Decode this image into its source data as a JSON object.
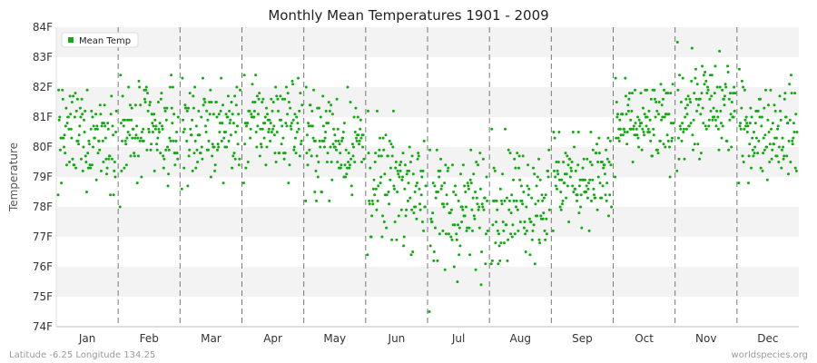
{
  "chart_data": {
    "type": "scatter",
    "title": "Monthly Mean Temperatures 1901 - 2009",
    "ylabel": "Temperature",
    "xlabel": "",
    "categories": [
      "Jan",
      "Feb",
      "Mar",
      "Apr",
      "May",
      "Jun",
      "Jul",
      "Aug",
      "Sep",
      "Oct",
      "Nov",
      "Dec"
    ],
    "y_ticks": [
      "74F",
      "75F",
      "76F",
      "77F",
      "78F",
      "79F",
      "80F",
      "81F",
      "82F",
      "83F",
      "84F"
    ],
    "ylim": [
      74,
      84
    ],
    "grid": "horizontal bands, dashed vertical month separators",
    "legend": {
      "position": "top-left",
      "label": "Mean Temp"
    },
    "series": [
      {
        "name": "Mean Temp",
        "color": "#11aa11",
        "monthly_summary": [
          {
            "month": "Jan",
            "min": 78.4,
            "max": 81.9,
            "center": 80.4,
            "spread": 0.75
          },
          {
            "month": "Feb",
            "min": 78.0,
            "max": 82.4,
            "center": 80.4,
            "spread": 0.85
          },
          {
            "month": "Mar",
            "min": 78.6,
            "max": 82.3,
            "center": 80.6,
            "spread": 0.75
          },
          {
            "month": "Apr",
            "min": 78.8,
            "max": 82.4,
            "center": 80.8,
            "spread": 0.75
          },
          {
            "month": "May",
            "min": 78.2,
            "max": 82.0,
            "center": 80.2,
            "spread": 0.85
          },
          {
            "month": "Jun",
            "min": 76.4,
            "max": 81.2,
            "center": 78.7,
            "spread": 0.95
          },
          {
            "month": "Jul",
            "min": 74.5,
            "max": 79.9,
            "center": 77.9,
            "spread": 1.05
          },
          {
            "month": "Aug",
            "min": 76.1,
            "max": 80.6,
            "center": 78.3,
            "spread": 0.95
          },
          {
            "month": "Sep",
            "min": 77.2,
            "max": 80.5,
            "center": 79.0,
            "spread": 0.8
          },
          {
            "month": "Oct",
            "min": 79.0,
            "max": 82.3,
            "center": 80.7,
            "spread": 0.7
          },
          {
            "month": "Nov",
            "min": 79.2,
            "max": 83.5,
            "center": 81.3,
            "spread": 0.8
          },
          {
            "month": "Dec",
            "min": 78.8,
            "max": 82.6,
            "center": 80.6,
            "spread": 0.75
          }
        ],
        "points_per_month": 109
      }
    ]
  },
  "footer": {
    "left": "Latitude -6.25 Longitude 134.25",
    "right": "worldspecies.org"
  }
}
